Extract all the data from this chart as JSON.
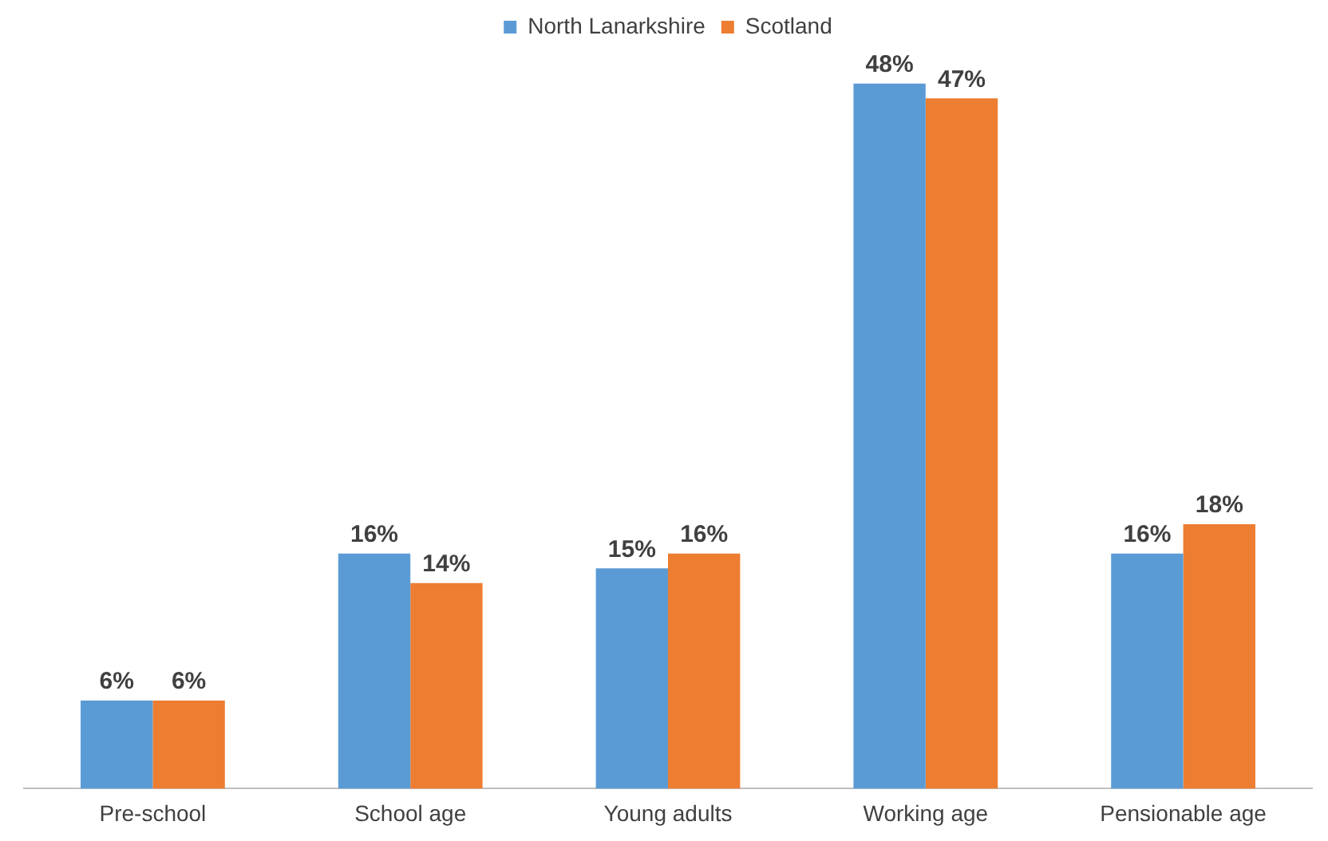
{
  "chart_data": {
    "type": "bar",
    "categories": [
      "Pre-school",
      "School age",
      "Young adults",
      "Working age",
      "Pensionable age"
    ],
    "series": [
      {
        "name": "North Lanarkshire",
        "color": "#5b9bd5",
        "values": [
          6,
          16,
          15,
          48,
          16
        ],
        "value_labels": [
          "6%",
          "16%",
          "15%",
          "48%",
          "16%"
        ]
      },
      {
        "name": "Scotland",
        "color": "#ed7d31",
        "values": [
          6,
          14,
          16,
          47,
          18
        ],
        "value_labels": [
          "6%",
          "14%",
          "16%",
          "47%",
          "18%"
        ]
      }
    ],
    "legend": "top",
    "grid": false,
    "tick_labels": "x"
  }
}
